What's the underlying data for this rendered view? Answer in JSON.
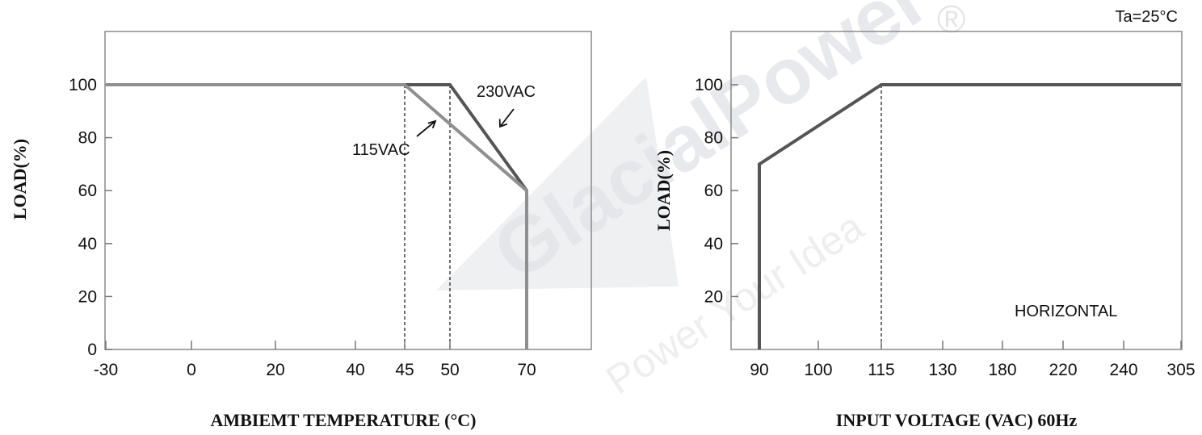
{
  "chart_data": [
    {
      "type": "line",
      "title": "",
      "xlabel": "AMBIEMT TEMPERATURE (°C)",
      "ylabel": "LOAD(%)",
      "x_ticks": [
        -30,
        0,
        20,
        40,
        45,
        50,
        70
      ],
      "y_ticks": [
        0,
        20,
        40,
        60,
        80,
        100
      ],
      "ylim": [
        0,
        120
      ],
      "series": [
        {
          "name": "115VAC",
          "color": "#8f8f8f",
          "points": [
            [
              -30,
              100
            ],
            [
              45,
              100
            ],
            [
              70,
              60
            ],
            [
              70,
              0
            ]
          ]
        },
        {
          "name": "230VAC",
          "color": "#555555",
          "points": [
            [
              -30,
              100
            ],
            [
              50,
              100
            ],
            [
              70,
              60
            ],
            [
              70,
              0
            ]
          ]
        }
      ],
      "annotations": [
        {
          "text": "230VAC",
          "target": [
            63,
            83
          ]
        },
        {
          "text": "115VAC",
          "target": [
            49,
            87
          ]
        }
      ],
      "reference_lines": [
        45,
        50
      ]
    },
    {
      "type": "line",
      "title": "",
      "xlabel": "INPUT VOLTAGE (VAC) 60Hz",
      "ylabel": "LOAD(%)",
      "x_ticks": [
        90,
        100,
        115,
        130,
        180,
        220,
        240,
        305
      ],
      "y_ticks": [
        20,
        40,
        60,
        80,
        100
      ],
      "ylim": [
        0,
        120
      ],
      "series": [
        {
          "name": "",
          "color": "#555555",
          "points": [
            [
              90,
              0
            ],
            [
              90,
              70
            ],
            [
              115,
              100
            ],
            [
              305,
              100
            ]
          ]
        }
      ],
      "annotations": [
        {
          "text": "HORIZONTAL"
        },
        {
          "text": "Ta=25°C"
        }
      ],
      "reference_lines": [
        115
      ]
    }
  ],
  "watermark": {
    "brand": "GlacialPower",
    "tagline": "Power Your Idea",
    "registered": "®"
  }
}
